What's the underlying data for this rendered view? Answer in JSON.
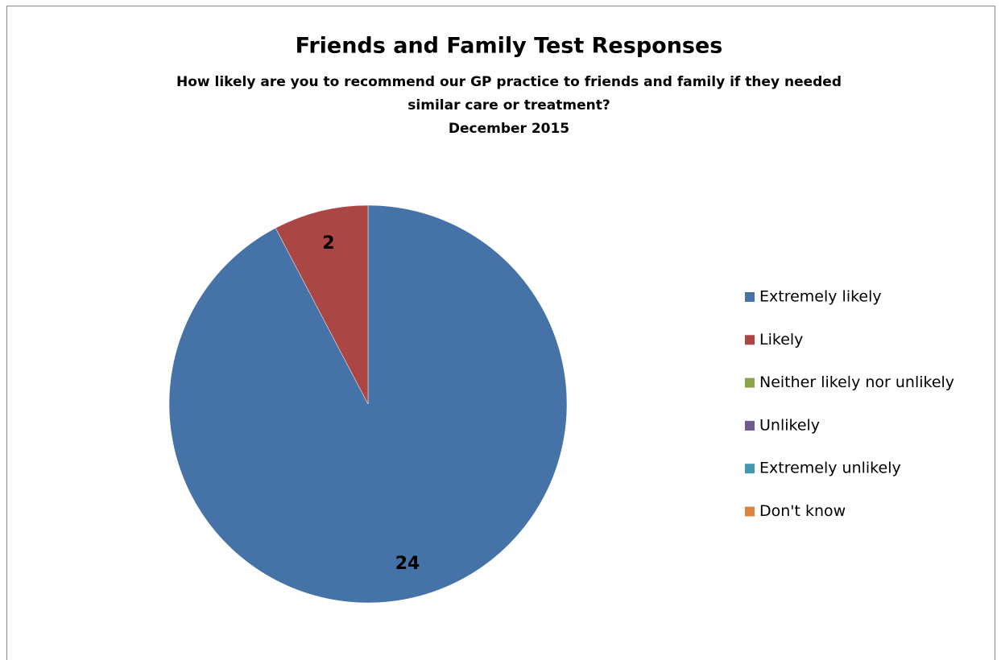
{
  "chart_data": {
    "type": "pie",
    "title": "Friends and Family Test Responses",
    "subtitle": [
      "How likely are you to recommend our GP practice to friends and family if they needed",
      "similar care or treatment?",
      "December 2015"
    ],
    "categories": [
      "Extremely likely",
      "Likely",
      "Neither likely nor unlikely",
      "Unlikely",
      "Extremely unlikely",
      "Don't know"
    ],
    "values": [
      24,
      2,
      0,
      0,
      0,
      0
    ],
    "colors": [
      "#4572a7",
      "#aa4643",
      "#89a54e",
      "#71588f",
      "#4198af",
      "#db843d"
    ],
    "legend": "right"
  }
}
